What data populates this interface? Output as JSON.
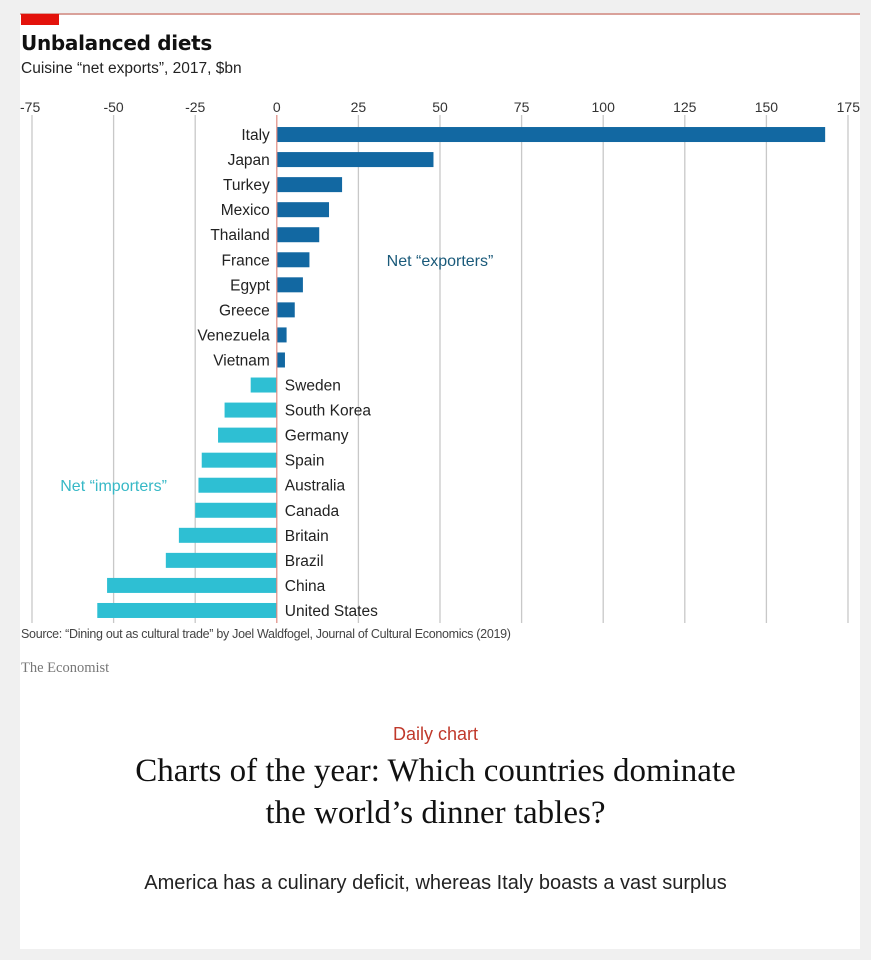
{
  "article": {
    "kicker": "Daily chart",
    "headline": "Charts of the year: Which countries dominate the world’s dinner tables?",
    "standfirst": "America has a culinary deficit, whereas Italy boasts a vast surplus"
  },
  "figure": {
    "source": "Source: “Dining out as cultural trade” by Joel Waldfogel, Journal of Cultural Economics (2019)",
    "brand": "The Economist"
  },
  "colors": {
    "exporter_bar": "#1268a2",
    "importer_bar": "#2ebfd3",
    "exporter_label": "#1a5a7a",
    "importer_label": "#36b8c6",
    "brand_red": "#e3120b",
    "zero_line": "#e08a80",
    "grid": "#c8c8c8"
  },
  "chart_data": {
    "type": "bar",
    "orientation": "horizontal",
    "title": "Unbalanced diets",
    "subtitle": "Cuisine “net exports”, 2017, $bn",
    "xlabel": "",
    "ylabel": "",
    "xlim": [
      -75,
      175
    ],
    "xticks": [
      -75,
      -50,
      -25,
      0,
      25,
      50,
      75,
      100,
      125,
      150,
      175
    ],
    "tick_labels": [
      "-75",
      "-50",
      "-25",
      "0",
      "25",
      "50",
      "75",
      "100",
      "125",
      "150",
      "175"
    ],
    "grid": true,
    "annotations": [
      {
        "text": "Net “exporters”",
        "group": "exporters"
      },
      {
        "text": "Net “importers”",
        "group": "importers"
      }
    ],
    "categories": [
      "Italy",
      "Japan",
      "Turkey",
      "Mexico",
      "Thailand",
      "France",
      "Egypt",
      "Greece",
      "Venezuela",
      "Vietnam",
      "Sweden",
      "South Korea",
      "Germany",
      "Spain",
      "Australia",
      "Canada",
      "Britain",
      "Brazil",
      "China",
      "United States"
    ],
    "values": [
      168,
      48,
      20,
      16,
      13,
      10,
      8,
      5.5,
      3,
      2.5,
      -8,
      -16,
      -18,
      -23,
      -24,
      -25,
      -30,
      -34,
      -52,
      -55
    ]
  }
}
